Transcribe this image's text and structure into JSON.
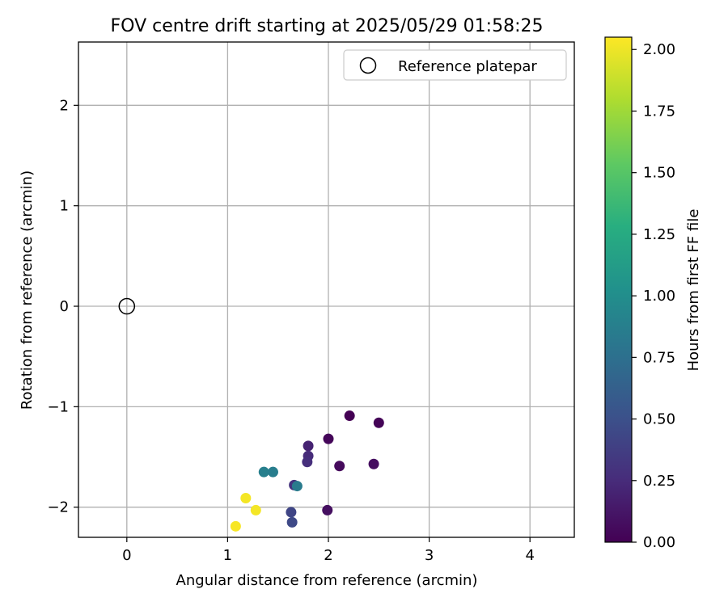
{
  "chart_data": {
    "type": "scatter",
    "title": "FOV centre drift starting at 2025/05/29 01:58:25",
    "xlabel": "Angular distance from reference (arcmin)",
    "ylabel": "Rotation from reference (arcmin)",
    "xlim": [
      -0.48,
      4.44
    ],
    "ylim": [
      -2.3,
      2.63
    ],
    "xticks": [
      0,
      1,
      2,
      3,
      4
    ],
    "yticks": [
      -2,
      -1,
      0,
      1,
      2
    ],
    "xtick_labels": [
      "0",
      "1",
      "2",
      "3",
      "4"
    ],
    "ytick_labels": [
      "−2",
      "−1",
      "0",
      "1",
      "2"
    ],
    "grid": true,
    "legend": {
      "placement": "top-right",
      "label": "Reference platepar"
    },
    "reference_point": {
      "x": 0,
      "y": 0
    },
    "colorbar": {
      "label": "Hours from first FF file",
      "range": [
        0,
        2.05
      ],
      "ticks": [
        0,
        0.25,
        0.5,
        0.75,
        1.0,
        1.25,
        1.5,
        1.75,
        2.0
      ],
      "tick_labels": [
        "0.00",
        "0.25",
        "0.50",
        "0.75",
        "1.00",
        "1.25",
        "1.50",
        "1.75",
        "2.00"
      ],
      "colormap": "viridis"
    },
    "points": [
      {
        "x": 2.21,
        "y": -1.09,
        "c": 0.0
      },
      {
        "x": 2.5,
        "y": -1.16,
        "c": 0.02
      },
      {
        "x": 2.0,
        "y": -1.32,
        "c": 0.03
      },
      {
        "x": 2.11,
        "y": -1.59,
        "c": 0.05
      },
      {
        "x": 2.45,
        "y": -1.57,
        "c": 0.07
      },
      {
        "x": 1.99,
        "y": -2.03,
        "c": 0.08
      },
      {
        "x": 1.8,
        "y": -1.39,
        "c": 0.2
      },
      {
        "x": 1.8,
        "y": -1.49,
        "c": 0.25
      },
      {
        "x": 1.79,
        "y": -1.55,
        "c": 0.27
      },
      {
        "x": 1.66,
        "y": -1.78,
        "c": 0.3
      },
      {
        "x": 1.63,
        "y": -2.05,
        "c": 0.42
      },
      {
        "x": 1.64,
        "y": -2.15,
        "c": 0.45
      },
      {
        "x": 1.36,
        "y": -1.65,
        "c": 0.88
      },
      {
        "x": 1.45,
        "y": -1.65,
        "c": 0.86
      },
      {
        "x": 1.69,
        "y": -1.79,
        "c": 0.84
      },
      {
        "x": 1.18,
        "y": -1.91,
        "c": 2.02
      },
      {
        "x": 1.28,
        "y": -2.03,
        "c": 2.02
      },
      {
        "x": 1.08,
        "y": -2.19,
        "c": 2.03
      }
    ]
  }
}
